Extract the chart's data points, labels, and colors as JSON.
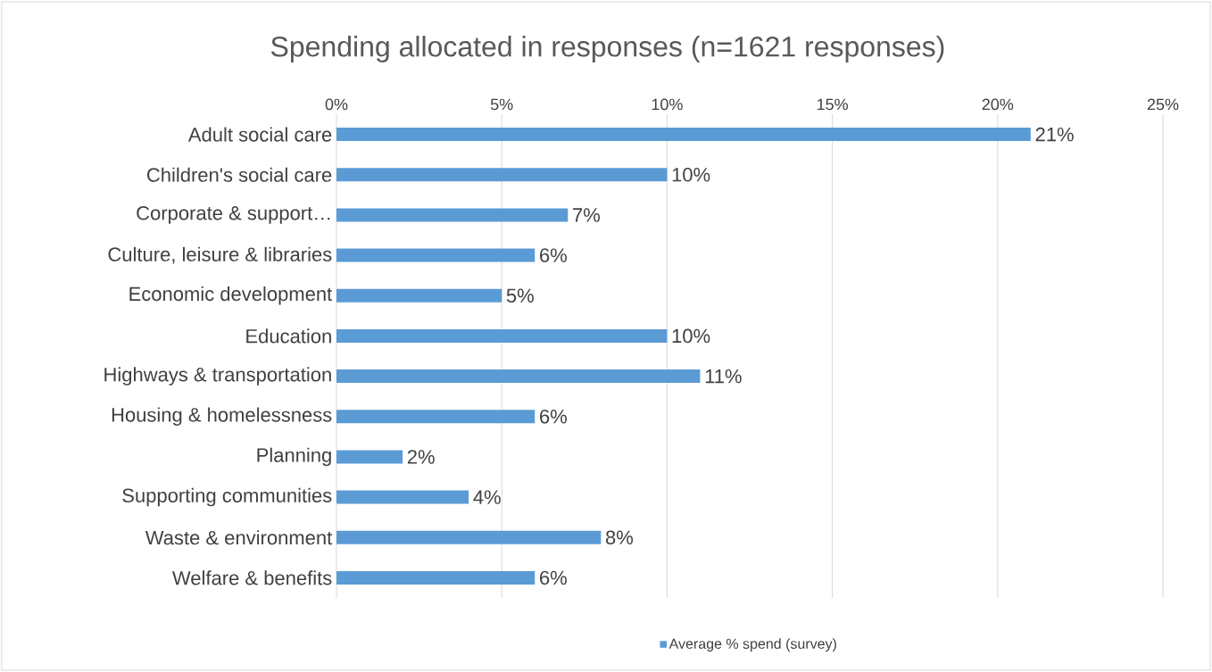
{
  "chart_data": {
    "type": "bar",
    "orientation": "horizontal",
    "title": "Spending allocated in responses (n=1621 responses)",
    "categories": [
      "Adult social care",
      "Children's social care",
      "Corporate & support…",
      "Culture, leisure & libraries",
      "Economic development",
      "Education",
      "Highways & transportation",
      "Housing & homelessness",
      "Planning",
      "Supporting communities",
      "Waste & environment",
      "Welfare & benefits"
    ],
    "series": [
      {
        "name": "Average % spend (survey)",
        "color": "#5b9bd5",
        "values": [
          21,
          10,
          7,
          6,
          5,
          10,
          11,
          6,
          2,
          4,
          8,
          6
        ],
        "value_labels": [
          "21%",
          "10%",
          "7%",
          "6%",
          "5%",
          "10%",
          "11%",
          "6%",
          "2%",
          "4%",
          "8%",
          "6%"
        ]
      }
    ],
    "xlim": [
      0,
      25
    ],
    "xticks": [
      {
        "value": 0,
        "label": "0%"
      },
      {
        "value": 5,
        "label": "5%"
      },
      {
        "value": 10,
        "label": "10%"
      },
      {
        "value": 15,
        "label": "15%"
      },
      {
        "value": 20,
        "label": "20%"
      },
      {
        "value": 25,
        "label": "25%"
      }
    ],
    "grid": "x",
    "legend": "bottom"
  }
}
